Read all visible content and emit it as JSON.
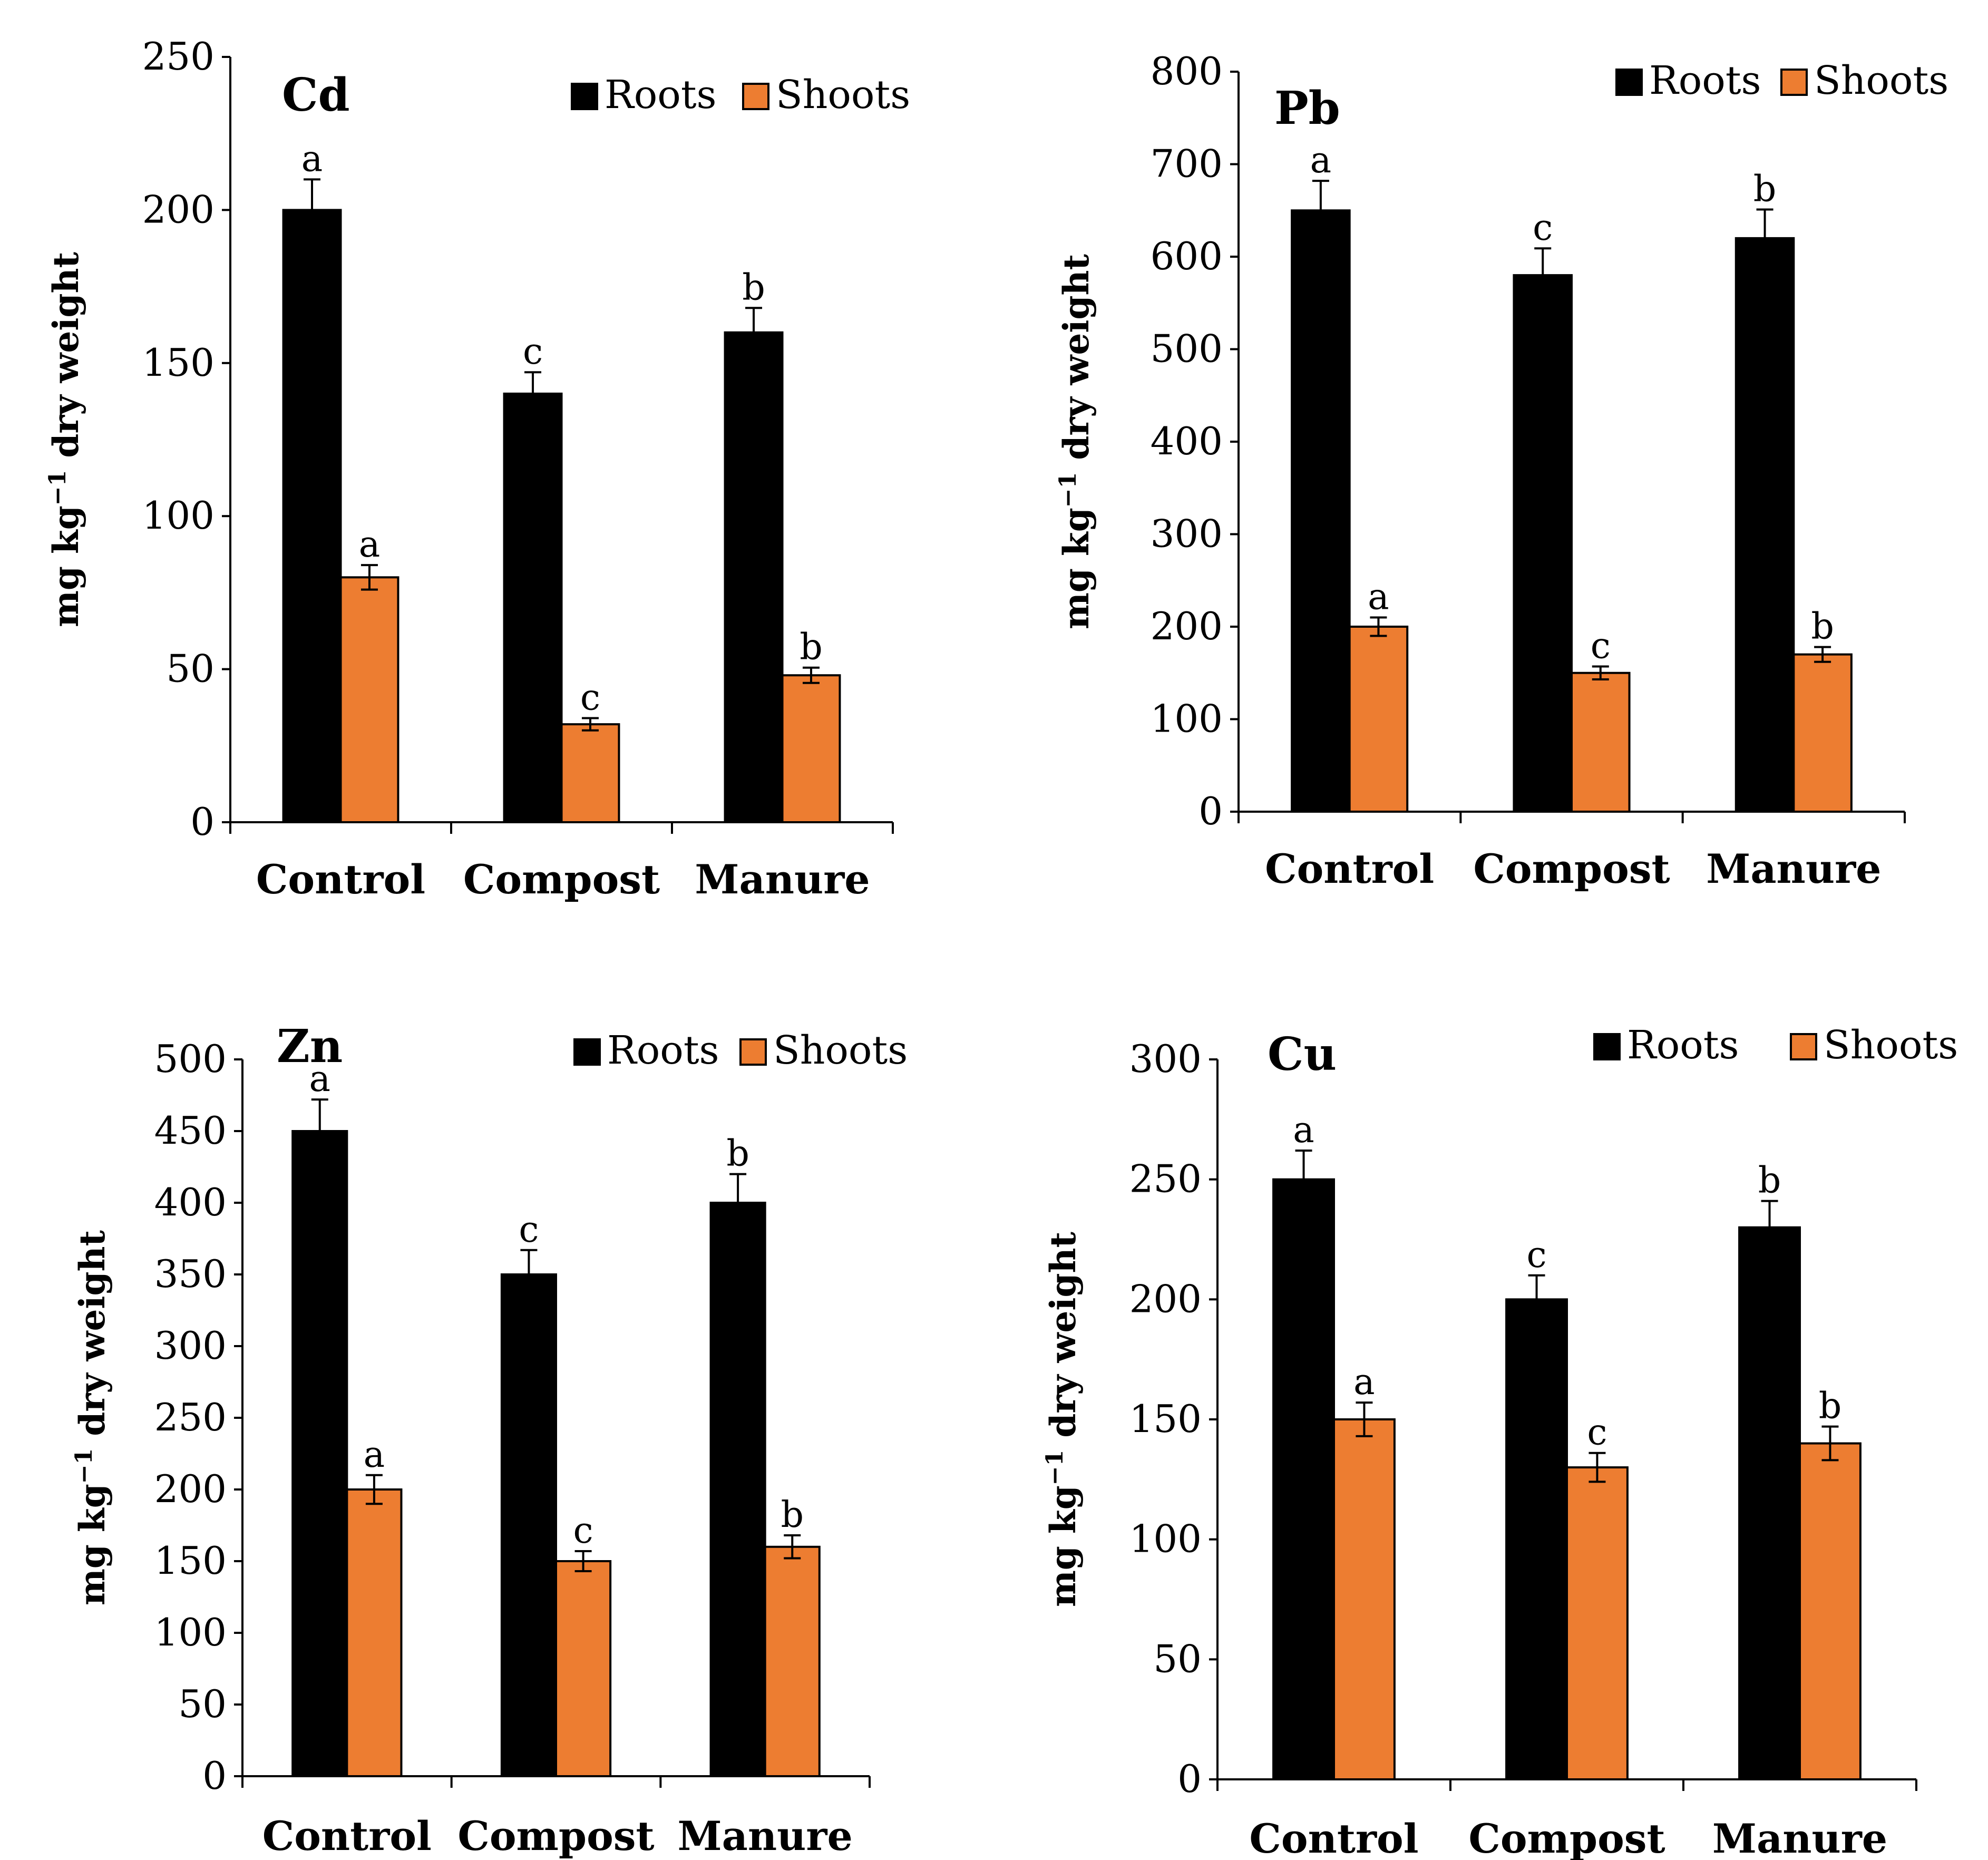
{
  "colors": {
    "roots": "#000000",
    "shoots": "#ED7D31",
    "axis": "#000000"
  },
  "chart_data": [
    {
      "type": "bar",
      "title": "Cd",
      "ylabel": "mg kg⁻¹ dry weight",
      "ylabel_parts": {
        "pre": "mg kg",
        "sup": "−1",
        "post": " dry weight"
      },
      "categories": [
        "Control",
        "Compost",
        "Manure"
      ],
      "ylim": [
        0,
        250
      ],
      "yticks": [
        "0",
        "50",
        "100",
        "150",
        "200",
        "250"
      ],
      "legend": [
        "Roots",
        "Shoots"
      ],
      "series": [
        {
          "name": "Roots",
          "values": [
            200,
            140,
            160
          ],
          "errors": [
            10,
            7,
            8
          ],
          "letters": [
            "a",
            "c",
            "b"
          ]
        },
        {
          "name": "Shoots",
          "values": [
            80,
            32,
            48
          ],
          "errors": [
            4,
            2,
            2.5
          ],
          "letters": [
            "a",
            "c",
            "b"
          ]
        }
      ]
    },
    {
      "type": "bar",
      "title": "Pb",
      "ylabel": "mg kg⁻¹ dry weight",
      "ylabel_parts": {
        "pre": "mg kg",
        "sup": "−1",
        "post": " dry weight"
      },
      "categories": [
        "Control",
        "Compost",
        "Manure"
      ],
      "ylim": [
        0,
        800
      ],
      "yticks": [
        "0",
        "100",
        "200",
        "300",
        "400",
        "500",
        "600",
        "700",
        "800"
      ],
      "legend": [
        "Roots",
        "Shoots"
      ],
      "series": [
        {
          "name": "Roots",
          "values": [
            650,
            580,
            620
          ],
          "errors": [
            32,
            29,
            31
          ],
          "letters": [
            "a",
            "c",
            "b"
          ]
        },
        {
          "name": "Shoots",
          "values": [
            200,
            150,
            170
          ],
          "errors": [
            10,
            7,
            8
          ],
          "letters": [
            "a",
            "c",
            "b"
          ]
        }
      ]
    },
    {
      "type": "bar",
      "title": "Zn",
      "ylabel": "mg kg⁻¹ dry weight",
      "ylabel_parts": {
        "pre": "mg kg",
        "sup": "−1",
        "post": " dry weight"
      },
      "categories": [
        "Control",
        "Compost",
        "Manure"
      ],
      "ylim": [
        0,
        500
      ],
      "yticks": [
        "0",
        "50",
        "100",
        "150",
        "200",
        "250",
        "300",
        "350",
        "400",
        "450",
        "500"
      ],
      "legend": [
        "Roots",
        "Shoots"
      ],
      "series": [
        {
          "name": "Roots",
          "values": [
            450,
            350,
            400
          ],
          "errors": [
            22,
            17,
            20
          ],
          "letters": [
            "a",
            "c",
            "b"
          ]
        },
        {
          "name": "Shoots",
          "values": [
            200,
            150,
            160
          ],
          "errors": [
            10,
            7,
            8
          ],
          "letters": [
            "a",
            "c",
            "b"
          ]
        }
      ]
    },
    {
      "type": "bar",
      "title": "Cu",
      "ylabel": "mg kg⁻¹ dry weight",
      "ylabel_parts": {
        "pre": "mg kg",
        "sup": "−1",
        "post": " dry weight"
      },
      "categories": [
        "Control",
        "Compost",
        "Manure"
      ],
      "ylim": [
        0,
        300
      ],
      "yticks": [
        "0",
        "50",
        "100",
        "150",
        "200",
        "250",
        "300"
      ],
      "legend": [
        "Roots",
        "Shoots"
      ],
      "series": [
        {
          "name": "Roots",
          "values": [
            250,
            200,
            230
          ],
          "errors": [
            12,
            10,
            11
          ],
          "letters": [
            "a",
            "c",
            "b"
          ]
        },
        {
          "name": "Shoots",
          "values": [
            150,
            130,
            140
          ],
          "errors": [
            7,
            6,
            7
          ],
          "letters": [
            "a",
            "c",
            "b"
          ]
        }
      ]
    }
  ]
}
